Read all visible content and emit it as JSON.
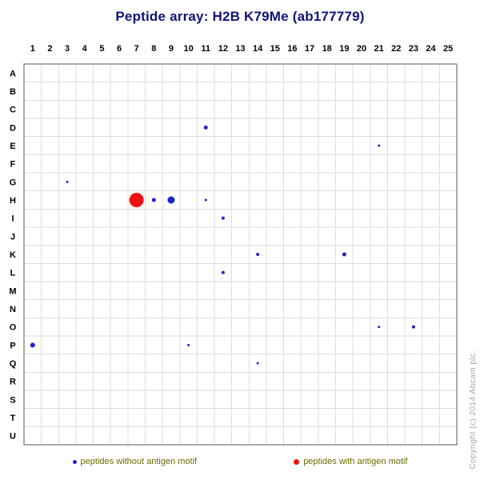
{
  "chart_data": {
    "type": "scatter",
    "title": "Peptide array:  H2B K79Me (ab177779)",
    "x_ticks": [
      "1",
      "2",
      "3",
      "4",
      "5",
      "6",
      "7",
      "8",
      "9",
      "10",
      "11",
      "12",
      "13",
      "14",
      "15",
      "16",
      "17",
      "18",
      "19",
      "20",
      "21",
      "22",
      "23",
      "24",
      "25"
    ],
    "y_ticks": [
      "A",
      "B",
      "C",
      "D",
      "E",
      "F",
      "G",
      "H",
      "I",
      "J",
      "K",
      "L",
      "M",
      "N",
      "O",
      "P",
      "Q",
      "R",
      "S",
      "T",
      "U"
    ],
    "grid": true,
    "legend_position": "bottom",
    "series": [
      {
        "name": "peptides without antigen motif",
        "color": "#2222cc",
        "points": [
          {
            "col": 1,
            "row": "P",
            "r": 3
          },
          {
            "col": 3,
            "row": "G",
            "r": 1.5
          },
          {
            "col": 8,
            "row": "H",
            "r": 2.5
          },
          {
            "col": 9,
            "row": "H",
            "r": 4.5
          },
          {
            "col": 11,
            "row": "D",
            "r": 2.5
          },
          {
            "col": 11,
            "row": "H",
            "r": 1.5
          },
          {
            "col": 10,
            "row": "P",
            "r": 1.5
          },
          {
            "col": 12,
            "row": "I",
            "r": 2
          },
          {
            "col": 12,
            "row": "L",
            "r": 2
          },
          {
            "col": 14,
            "row": "K",
            "r": 2
          },
          {
            "col": 14,
            "row": "Q",
            "r": 1.5
          },
          {
            "col": 19,
            "row": "K",
            "r": 2.5
          },
          {
            "col": 21,
            "row": "E",
            "r": 1.5
          },
          {
            "col": 21,
            "row": "O",
            "r": 1.5
          },
          {
            "col": 23,
            "row": "O",
            "r": 2
          }
        ]
      },
      {
        "name": "peptides with antigen motif",
        "color": "#ee1111",
        "points": [
          {
            "col": 7,
            "row": "H",
            "r": 9
          }
        ]
      }
    ]
  },
  "colors": {
    "title": "#12127e",
    "grid": "#dcdcdc",
    "border": "#5a5a5a",
    "tick_labels": "#000000",
    "legend_text": "#6b6b00",
    "copyright": "#a6a6a6"
  },
  "copyright": "Copyright (c) 2014 Abcam plc."
}
